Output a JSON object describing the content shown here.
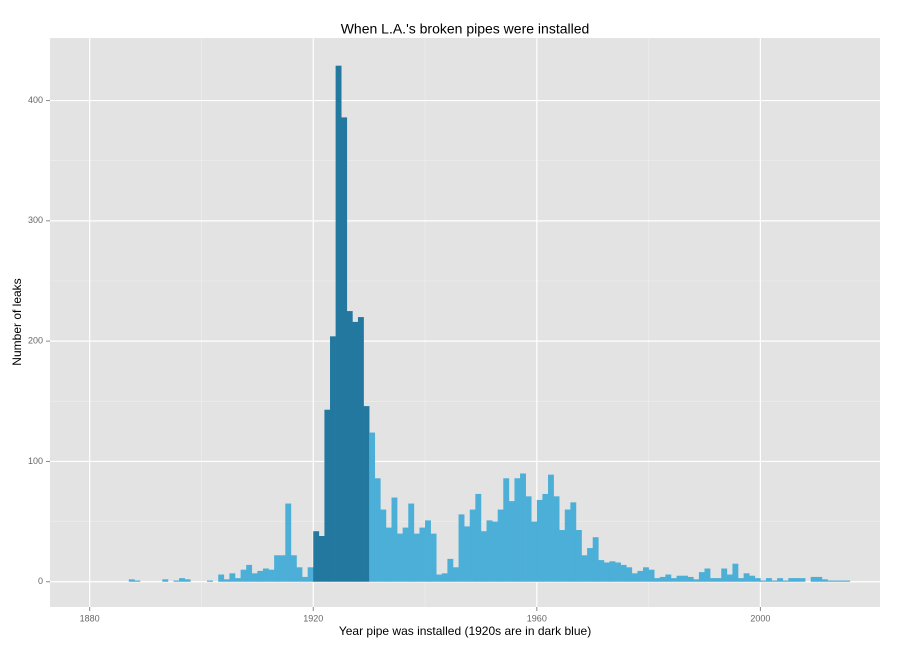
{
  "chart_data": {
    "type": "histogram",
    "title": "When L.A.'s broken pipes were installed",
    "x_label": "Year pipe was installed (1920s are in dark blue)",
    "y_label": "Number of leaks",
    "bins": [
      1886,
      1887,
      1888,
      1889,
      1890,
      1891,
      1892,
      1893,
      1894,
      1895,
      1896,
      1897,
      1898,
      1899,
      1900,
      1901,
      1902,
      1903,
      1904,
      1905,
      1906,
      1907,
      1908,
      1909,
      1910,
      1911,
      1912,
      1913,
      1914,
      1915,
      1916,
      1917,
      1918,
      1919,
      1920,
      1921,
      1922,
      1923,
      1924,
      1925,
      1926,
      1927,
      1928,
      1929,
      1930,
      1931,
      1932,
      1933,
      1934,
      1935,
      1936,
      1937,
      1938,
      1939,
      1940,
      1941,
      1942,
      1943,
      1944,
      1945,
      1946,
      1947,
      1948,
      1949,
      1950,
      1951,
      1952,
      1953,
      1954,
      1955,
      1956,
      1957,
      1958,
      1959,
      1960,
      1961,
      1962,
      1963,
      1964,
      1965,
      1966,
      1967,
      1968,
      1969,
      1970,
      1971,
      1972,
      1973,
      1974,
      1975,
      1976,
      1977,
      1978,
      1979,
      1980,
      1981,
      1982,
      1983,
      1984,
      1985,
      1986,
      1987,
      1988,
      1989,
      1990,
      1991,
      1992,
      1993,
      1994,
      1995,
      1996,
      1997,
      1998,
      1999,
      2000,
      2001,
      2002,
      2003,
      2004,
      2005,
      2006,
      2007,
      2008,
      2009,
      2010,
      2011,
      2012,
      2013,
      2014,
      2015,
      2016
    ],
    "counts": [
      0,
      2,
      1,
      0,
      0,
      0,
      0,
      2,
      0,
      1,
      3,
      2,
      0,
      0,
      0,
      1,
      0,
      6,
      2,
      7,
      3,
      10,
      14,
      7,
      9,
      11,
      10,
      22,
      22,
      65,
      22,
      12,
      4,
      12,
      42,
      38,
      143,
      204,
      429,
      386,
      225,
      216,
      220,
      146,
      124,
      86,
      60,
      45,
      70,
      40,
      45,
      65,
      40,
      45,
      51,
      40,
      6,
      7,
      19,
      12,
      56,
      46,
      60,
      73,
      42,
      51,
      50,
      60,
      86,
      67,
      86,
      90,
      71,
      50,
      68,
      73,
      89,
      71,
      43,
      60,
      66,
      43,
      22,
      28,
      37,
      18,
      16,
      17,
      16,
      14,
      12,
      7,
      9,
      12,
      10,
      3,
      4,
      6,
      3,
      5,
      5,
      4,
      2,
      8,
      11,
      3,
      3,
      11,
      6,
      15,
      3,
      7,
      5,
      3,
      1,
      3,
      1,
      3,
      1,
      3,
      3,
      3,
      0,
      4,
      4,
      2,
      1,
      1,
      1,
      1
    ],
    "color": "#4cafd7",
    "highlight": {
      "range": [
        1920,
        1930
      ],
      "color": "#22789e"
    },
    "xlim": [
      1872.9,
      2021.4
    ],
    "xticks": [
      1880,
      1920,
      1960,
      2000
    ],
    "ylim": [
      -21,
      452
    ],
    "yticks": [
      0,
      100,
      200,
      300,
      400
    ],
    "grid": true
  }
}
